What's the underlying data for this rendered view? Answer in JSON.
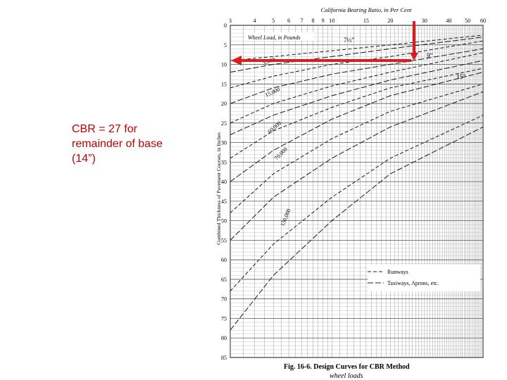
{
  "slide": {
    "caption_lines": [
      "CBR = 27 for",
      "remainder of base",
      "(14”)"
    ],
    "annotation_color": "#d81e1e"
  },
  "figure": {
    "title_top": "California Bearing Ratio, in Per Cent",
    "cbr_ticks": [
      "3",
      "4",
      "5",
      "6",
      "7",
      "8",
      "9",
      "10",
      "15",
      "20",
      "30",
      "40",
      "50",
      "60"
    ],
    "yaxis_label": "Combined Thickness of Pavement Courses, in Inches",
    "depth_ticks": [
      "0",
      "5",
      "10",
      "15",
      "20",
      "25",
      "30",
      "35",
      "40",
      "45",
      "50",
      "55",
      "60",
      "65",
      "70",
      "75",
      "80",
      "85"
    ],
    "wheel_load_label": "Wheel Load, in Pounds",
    "load_labels": [
      "5,000",
      "15,000",
      "60,000",
      "70,000",
      "150,000"
    ],
    "tire_labels": [
      "7½”",
      "9”",
      "15”"
    ],
    "legend": [
      "Runways",
      "Taxiways, Aprons, etc."
    ],
    "fig_caption": "Fig. 16-6.  Design Curves for CBR Method",
    "handwritten_note": "wheel loads"
  }
}
